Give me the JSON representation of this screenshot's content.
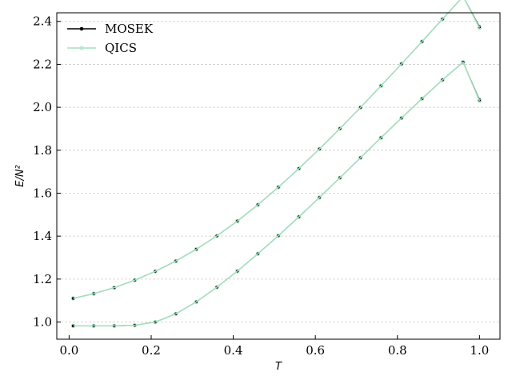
{
  "chart_data": {
    "type": "line",
    "title": "",
    "xlabel": "T",
    "ylabel": "E/N²",
    "xlim": [
      -0.03,
      1.05
    ],
    "ylim": [
      0.92,
      2.44
    ],
    "x_ticks": [
      0.0,
      0.2,
      0.4,
      0.6,
      0.8,
      1.0
    ],
    "x_tick_labels": [
      "0.0",
      "0.2",
      "0.4",
      "0.6",
      "0.8",
      "1.0"
    ],
    "y_ticks": [
      1.0,
      1.2,
      1.4,
      1.6,
      1.8,
      2.0,
      2.2,
      2.4
    ],
    "y_tick_labels": [
      "1.0",
      "1.2",
      "1.4",
      "1.6",
      "1.8",
      "2.0",
      "2.2",
      "2.4"
    ],
    "grid": "horizontal dashed",
    "legend_position": "top-left",
    "legend": [
      {
        "label": "MOSEK",
        "color": "#000000"
      },
      {
        "label": "QICS",
        "color": "#a6e0bf"
      }
    ],
    "x": [
      0.01,
      0.06,
      0.11,
      0.16,
      0.21,
      0.26,
      0.31,
      0.36,
      0.41,
      0.46,
      0.51,
      0.56,
      0.61,
      0.66,
      0.71,
      0.76,
      0.81,
      0.86,
      0.91,
      0.96,
      1.0
    ],
    "series": [
      {
        "name": "MOSEK",
        "color": "#000000",
        "curves": [
          [
            1.11,
            1.132,
            1.16,
            1.195,
            1.236,
            1.284,
            1.339,
            1.401,
            1.47,
            1.546,
            1.628,
            1.715,
            1.806,
            1.901,
            1.999,
            2.1,
            2.202,
            2.306,
            2.411,
            2.516,
            2.375
          ],
          [
            0.982,
            0.982,
            0.982,
            0.985,
            1.0,
            1.038,
            1.094,
            1.162,
            1.237,
            1.318,
            1.402,
            1.49,
            1.58,
            1.672,
            1.765,
            1.858,
            1.95,
            2.04,
            2.128,
            2.21,
            2.035
          ]
        ]
      },
      {
        "name": "QICS",
        "color": "#a6e0bf",
        "curves": [
          [
            1.11,
            1.132,
            1.16,
            1.195,
            1.236,
            1.284,
            1.339,
            1.401,
            1.47,
            1.546,
            1.628,
            1.715,
            1.806,
            1.901,
            1.999,
            2.1,
            2.202,
            2.306,
            2.411,
            2.516,
            2.37
          ],
          [
            0.982,
            0.982,
            0.982,
            0.985,
            1.0,
            1.038,
            1.094,
            1.162,
            1.237,
            1.318,
            1.402,
            1.49,
            1.58,
            1.672,
            1.765,
            1.858,
            1.95,
            2.04,
            2.128,
            2.21,
            2.03
          ]
        ]
      }
    ]
  }
}
